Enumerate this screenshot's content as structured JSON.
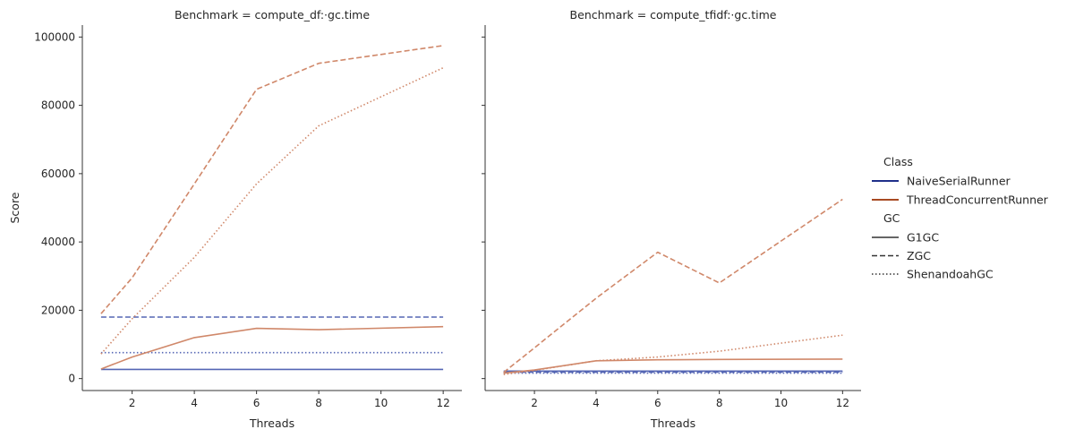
{
  "chart_data": {
    "type": "line",
    "y_label": "Score",
    "x_label": "Threads",
    "x_ticks": [
      2,
      4,
      6,
      8,
      10,
      12
    ],
    "y_ticks": [
      0,
      20000,
      40000,
      60000,
      80000,
      100000
    ],
    "y_tick_labels": [
      "0",
      "20000",
      "40000",
      "60000",
      "80000",
      "100000"
    ],
    "xlim": [
      0.4,
      12.6
    ],
    "ylim": [
      -3500,
      103500
    ],
    "legend": {
      "placement": "right",
      "hue_title": "Class",
      "hue_entries": [
        {
          "label": "NaiveSerialRunner",
          "color": "#1f2f8a"
        },
        {
          "label": "ThreadConcurrentRunner",
          "color": "#a84a22"
        }
      ],
      "style_title": "GC",
      "style_entries": [
        {
          "label": "G1GC",
          "dash": "solid"
        },
        {
          "label": "ZGC",
          "dash": "dashed"
        },
        {
          "label": "ShenandoahGC",
          "dash": "dotted"
        }
      ]
    },
    "panels": [
      {
        "title": "Benchmark = compute_df:·gc.time",
        "series": [
          {
            "class": "NaiveSerialRunner",
            "gc": "G1GC",
            "color": "#5566b4",
            "dash": "solid",
            "x": [
              1,
              12
            ],
            "y": [
              2700,
              2700
            ]
          },
          {
            "class": "NaiveSerialRunner",
            "gc": "ZGC",
            "color": "#5566b4",
            "dash": "dashed",
            "x": [
              1,
              12
            ],
            "y": [
              18000,
              18000
            ]
          },
          {
            "class": "NaiveSerialRunner",
            "gc": "ShenandoahGC",
            "color": "#5566b4",
            "dash": "dotted",
            "x": [
              1,
              12
            ],
            "y": [
              7600,
              7600
            ]
          },
          {
            "class": "ThreadConcurrentRunner",
            "gc": "G1GC",
            "color": "#d0886a",
            "dash": "solid",
            "x": [
              1,
              2,
              4,
              6,
              8,
              12
            ],
            "y": [
              2800,
              6300,
              12000,
              14700,
              14300,
              15200
            ]
          },
          {
            "class": "ThreadConcurrentRunner",
            "gc": "ZGC",
            "color": "#d0886a",
            "dash": "dashed",
            "x": [
              1,
              2,
              4,
              6,
              8,
              12
            ],
            "y": [
              19000,
              29500,
              57000,
              84700,
              92300,
              97500
            ]
          },
          {
            "class": "ThreadConcurrentRunner",
            "gc": "ShenandoahGC",
            "color": "#d0886a",
            "dash": "dotted",
            "x": [
              1,
              2,
              4,
              6,
              8,
              12
            ],
            "y": [
              7200,
              17500,
              35500,
              57000,
              74000,
              91000
            ]
          }
        ]
      },
      {
        "title": "Benchmark = compute_tfidf:·gc.time",
        "series": [
          {
            "class": "NaiveSerialRunner",
            "gc": "G1GC",
            "color": "#5566b4",
            "dash": "solid",
            "x": [
              1,
              12
            ],
            "y": [
              2200,
              2200
            ]
          },
          {
            "class": "NaiveSerialRunner",
            "gc": "ZGC",
            "color": "#5566b4",
            "dash": "dashed",
            "x": [
              1,
              12
            ],
            "y": [
              1900,
              1900
            ]
          },
          {
            "class": "NaiveSerialRunner",
            "gc": "ShenandoahGC",
            "color": "#5566b4",
            "dash": "dotted",
            "x": [
              1,
              12
            ],
            "y": [
              1600,
              1600
            ]
          },
          {
            "class": "ThreadConcurrentRunner",
            "gc": "G1GC",
            "color": "#d0886a",
            "dash": "solid",
            "x": [
              1,
              2,
              4,
              6,
              8,
              12
            ],
            "y": [
              1600,
              2500,
              5200,
              5500,
              5600,
              5700
            ]
          },
          {
            "class": "ThreadConcurrentRunner",
            "gc": "ZGC",
            "color": "#d0886a",
            "dash": "dashed",
            "x": [
              1,
              2,
              4,
              6,
              8,
              12
            ],
            "y": [
              1800,
              9000,
              23500,
              37000,
              28000,
              52500
            ]
          },
          {
            "class": "ThreadConcurrentRunner",
            "gc": "ShenandoahGC",
            "color": "#d0886a",
            "dash": "dotted",
            "x": [
              1,
              2,
              4,
              6,
              8,
              12
            ],
            "y": [
              1200,
              2400,
              5200,
              6300,
              8000,
              12700
            ]
          }
        ]
      }
    ]
  }
}
